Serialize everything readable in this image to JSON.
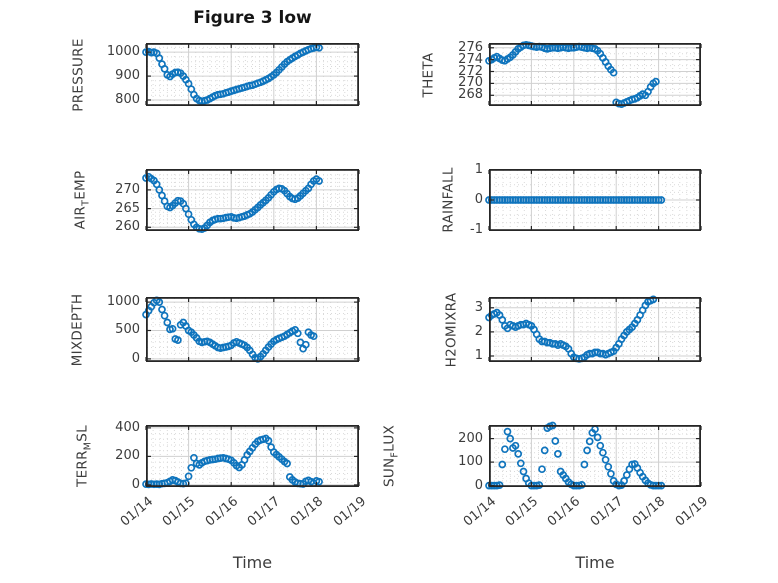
{
  "figure": {
    "title": "Figure 3 low"
  },
  "colors": {
    "marker": "#0F74BD",
    "axis": "#262626",
    "grid_major": "#d0d0d0",
    "grid_minor": "#d9d9d9",
    "text": "#3d3d3d"
  },
  "x_axis": {
    "label": "Time",
    "lim": [
      14,
      19
    ],
    "tick_values": [
      14,
      15,
      16,
      17,
      18,
      19
    ],
    "tick_labels": [
      "01/14",
      "01/15",
      "01/16",
      "01/17",
      "01/18",
      "01/19"
    ],
    "minor_per_interval": 6
  },
  "chart_data": [
    {
      "id": "pressure",
      "type": "scatter",
      "marker": "open-circle",
      "title": "Figure 3 low",
      "ylabel": {
        "pre": "PRESSURE",
        "sub": "",
        "post": ""
      },
      "ylim": [
        775,
        1038
      ],
      "yticks": [
        1000,
        900,
        800
      ],
      "yminor_div": 5,
      "show_x_tick_labels": false,
      "x0": 14.0,
      "dx": 0.0625,
      "y": [
        1000,
        1002,
        998,
        1000,
        995,
        975,
        950,
        930,
        905,
        898,
        908,
        915,
        916,
        912,
        900,
        885,
        868,
        845,
        822,
        806,
        798,
        795,
        797,
        800,
        806,
        812,
        818,
        822,
        824,
        826,
        830,
        833,
        837,
        840,
        844,
        847,
        850,
        853,
        857,
        860,
        862,
        866,
        870,
        874,
        879,
        884,
        890,
        897,
        905,
        915,
        926,
        938,
        950,
        960,
        968,
        975,
        982,
        988,
        995,
        1000,
        1005,
        1010,
        1014,
        1017,
        1020,
        1018
      ]
    },
    {
      "id": "theta",
      "type": "scatter",
      "marker": "open-circle",
      "ylabel": {
        "pre": "THETA",
        "sub": "",
        "post": ""
      },
      "ylim": [
        266.2,
        276.8
      ],
      "yticks": [
        276,
        274,
        272,
        270,
        268
      ],
      "yminor_div": 2,
      "show_x_tick_labels": false,
      "x0": 14.0,
      "dx": 0.0625,
      "y": [
        273.8,
        274,
        274.3,
        274.5,
        274.2,
        273.9,
        273.8,
        274.1,
        274.4,
        274.8,
        275.3,
        275.8,
        276.1,
        276.4,
        276.5,
        276.4,
        276.3,
        276.2,
        276.1,
        276.2,
        276.1,
        275.9,
        275.8,
        275.9,
        276,
        276,
        275.9,
        276,
        276.1,
        276,
        275.9,
        276,
        276,
        276.1,
        276.2,
        276.1,
        276,
        275.9,
        276,
        275.9,
        275.8,
        275.5,
        275,
        274.3,
        273.6,
        272.9,
        272.3,
        271.8,
        266.8,
        266.6,
        266.5,
        266.7,
        266.9,
        267.1,
        267.3,
        267.4,
        267.6,
        267.9,
        268.2,
        268,
        268.6,
        269.4,
        270,
        270.3
      ]
    },
    {
      "id": "air-temp",
      "type": "scatter",
      "marker": "open-circle",
      "ylabel": {
        "pre": "AIR",
        "sub": "T",
        "post": "EMP"
      },
      "ylim": [
        259.0,
        275.6
      ],
      "yticks": [
        270,
        265,
        260
      ],
      "yminor_div": 5,
      "show_x_tick_labels": false,
      "x0": 14.0,
      "dx": 0.0625,
      "y": [
        273.2,
        273.5,
        273,
        272.5,
        271.5,
        270,
        268.5,
        267,
        265.6,
        265.3,
        265.8,
        266.5,
        267.1,
        267,
        266.3,
        265,
        263.5,
        262,
        260.8,
        260,
        259.6,
        259.5,
        259.8,
        260.5,
        261.3,
        261.8,
        262.1,
        262.3,
        262.3,
        262.4,
        262.6,
        262.7,
        262.8,
        262.5,
        262.4,
        262.6,
        262.8,
        263,
        263.3,
        263.6,
        264.1,
        264.7,
        265.3,
        266,
        266.6,
        267.2,
        267.9,
        268.7,
        269.5,
        270.1,
        270.4,
        270.3,
        269.8,
        269,
        268.2,
        267.7,
        267.5,
        267.8,
        268.4,
        269.1,
        269.8,
        270.4,
        271.5,
        272.4,
        272.9,
        272.4
      ]
    },
    {
      "id": "rainfall",
      "type": "scatter",
      "marker": "open-circle",
      "ylabel": {
        "pre": "RAINFALL",
        "sub": "",
        "post": ""
      },
      "ylim": [
        -1.02,
        1.02
      ],
      "yticks": [
        1,
        0,
        -1
      ],
      "yminor_div": 4,
      "show_x_tick_labels": false,
      "x0": 14.0,
      "dx": 0.0625,
      "y": [
        0,
        0,
        0,
        0,
        0,
        0,
        0,
        0,
        0,
        0,
        0,
        0,
        0,
        0,
        0,
        0,
        0,
        0,
        0,
        0,
        0,
        0,
        0,
        0,
        0,
        0,
        0,
        0,
        0,
        0,
        0,
        0,
        0,
        0,
        0,
        0,
        0,
        0,
        0,
        0,
        0,
        0,
        0,
        0,
        0,
        0,
        0,
        0,
        0,
        0,
        0,
        0,
        0,
        0,
        0,
        0,
        0,
        0,
        0,
        0,
        0,
        0,
        0,
        0,
        0,
        0
      ]
    },
    {
      "id": "mixdepth",
      "type": "scatter",
      "marker": "open-circle",
      "ylabel": {
        "pre": "MIXDEPTH",
        "sub": "",
        "post": ""
      },
      "ylim": [
        -55,
        1090
      ],
      "yticks": [
        1000,
        500,
        0
      ],
      "yminor_div": 5,
      "show_x_tick_labels": false,
      "x0": 14.0,
      "dx": 0.0625,
      "y": [
        780,
        850,
        920,
        990,
        1030,
        1000,
        870,
        760,
        640,
        520,
        530,
        350,
        330,
        600,
        640,
        580,
        500,
        470,
        420,
        370,
        310,
        290,
        300,
        310,
        290,
        260,
        230,
        200,
        190,
        200,
        210,
        220,
        240,
        280,
        300,
        280,
        260,
        240,
        200,
        150,
        80,
        20,
        0,
        40,
        90,
        150,
        210,
        260,
        310,
        340,
        360,
        380,
        400,
        430,
        460,
        490,
        510,
        450,
        290,
        180,
        250,
        470,
        420,
        400
      ]
    },
    {
      "id": "h2omixra",
      "type": "scatter",
      "marker": "open-circle",
      "ylabel": {
        "pre": "H2OMIXRA",
        "sub": "",
        "post": ""
      },
      "ylim": [
        0.75,
        3.45
      ],
      "yticks": [
        3,
        2,
        1
      ],
      "yminor_div": 5,
      "show_x_tick_labels": false,
      "x0": 14.0,
      "dx": 0.0625,
      "y": [
        2.6,
        2.7,
        2.75,
        2.8,
        2.7,
        2.5,
        2.25,
        2.15,
        2.3,
        2.25,
        2.2,
        2.25,
        2.3,
        2.3,
        2.35,
        2.3,
        2.25,
        2.1,
        1.9,
        1.7,
        1.6,
        1.6,
        1.55,
        1.55,
        1.5,
        1.5,
        1.45,
        1.5,
        1.45,
        1.4,
        1.3,
        1.1,
        0.95,
        0.9,
        0.88,
        0.9,
        0.95,
        1.05,
        1.1,
        1.1,
        1.15,
        1.15,
        1.1,
        1.1,
        1.05,
        1.1,
        1.15,
        1.2,
        1.35,
        1.5,
        1.7,
        1.85,
        2,
        2.1,
        2.2,
        2.35,
        2.5,
        2.7,
        2.9,
        3.1,
        3.25,
        3.3,
        3.35
      ]
    },
    {
      "id": "terr-msl",
      "type": "scatter",
      "marker": "open-circle",
      "ylabel": {
        "pre": "TERR",
        "sub": "M",
        "post": "SL"
      },
      "ylim": [
        -15,
        420
      ],
      "yticks": [
        400,
        200,
        0
      ],
      "yminor_div": 5,
      "show_x_tick_labels": true,
      "x0": 14.0,
      "dx": 0.0625,
      "y": [
        5,
        3,
        6,
        4,
        5,
        3,
        8,
        10,
        15,
        25,
        35,
        30,
        20,
        10,
        8,
        12,
        60,
        120,
        190,
        150,
        140,
        155,
        165,
        170,
        175,
        178,
        180,
        185,
        188,
        190,
        185,
        180,
        172,
        155,
        135,
        122,
        140,
        175,
        210,
        235,
        260,
        285,
        305,
        315,
        320,
        325,
        310,
        265,
        230,
        212,
        196,
        180,
        163,
        150,
        55,
        35,
        20,
        10,
        8,
        6,
        25,
        32,
        22,
        12,
        28,
        22
      ]
    },
    {
      "id": "sun-flux",
      "type": "scatter",
      "marker": "open-circle",
      "ylabel": {
        "pre": "SUN",
        "sub": "F",
        "post": "LUX"
      },
      "ylim": [
        -6,
        258
      ],
      "yticks": [
        200,
        100,
        0
      ],
      "yminor_div": 5,
      "show_x_tick_labels": true,
      "x0": 14.0,
      "dx": 0.0625,
      "y": [
        0,
        0,
        0,
        0,
        2,
        90,
        155,
        230,
        200,
        160,
        170,
        135,
        95,
        60,
        30,
        10,
        0,
        0,
        0,
        2,
        70,
        150,
        245,
        252,
        256,
        190,
        135,
        60,
        45,
        30,
        15,
        5,
        0,
        0,
        0,
        3,
        90,
        150,
        188,
        225,
        240,
        205,
        170,
        140,
        110,
        80,
        50,
        20,
        5,
        0,
        2,
        20,
        45,
        70,
        90,
        92,
        75,
        55,
        38,
        22,
        10,
        3,
        0,
        0,
        0,
        0
      ]
    }
  ]
}
